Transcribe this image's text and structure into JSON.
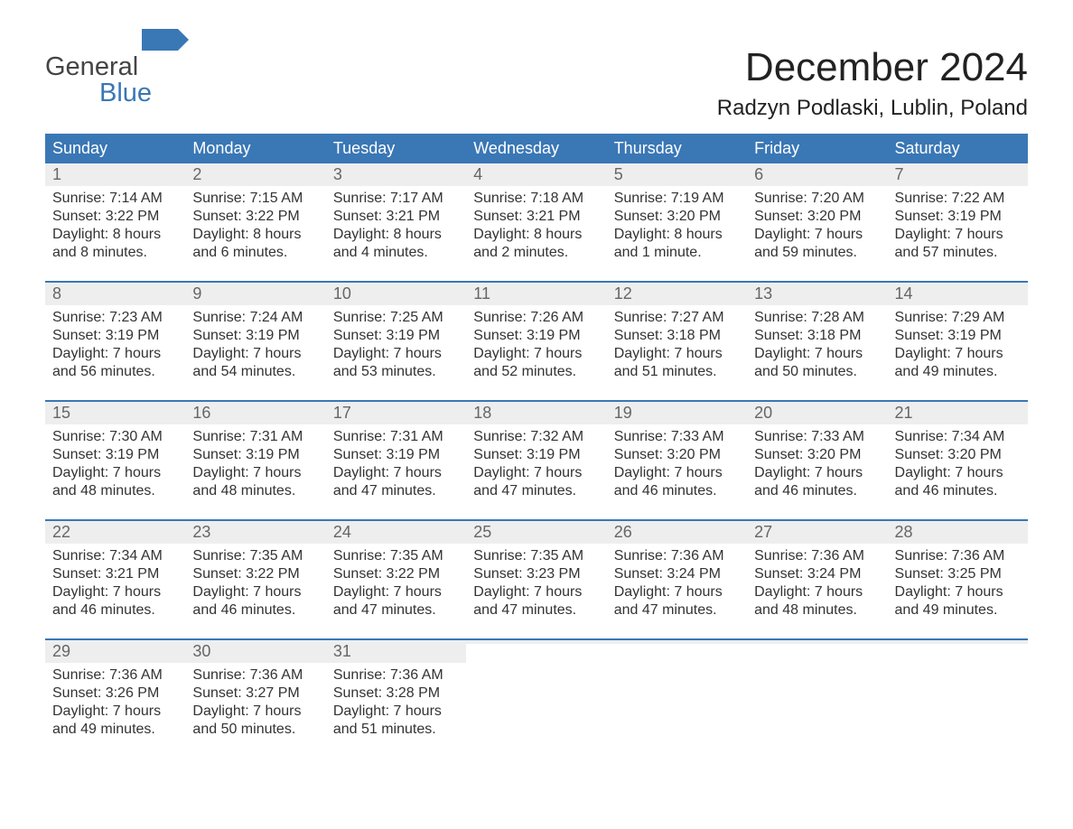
{
  "logo": {
    "text1": "General",
    "text2": "Blue",
    "flag_color": "#3a77b5"
  },
  "header": {
    "title": "December 2024",
    "location": "Radzyn Podlaski, Lublin, Poland"
  },
  "calendar": {
    "type": "table",
    "columns": [
      "Sunday",
      "Monday",
      "Tuesday",
      "Wednesday",
      "Thursday",
      "Friday",
      "Saturday"
    ],
    "header_bg": "#3a77b5",
    "header_fg": "#ffffff",
    "daynum_bg": "#eeeeee",
    "daynum_fg": "#666666",
    "row_separator_color": "#3a77b5",
    "text_color": "#333333",
    "background_color": "#ffffff",
    "fontsize_header": 18,
    "fontsize_daynum": 18,
    "fontsize_body": 16,
    "weeks": [
      [
        {
          "day": "1",
          "sunrise": "Sunrise: 7:14 AM",
          "sunset": "Sunset: 3:22 PM",
          "dl1": "Daylight: 8 hours",
          "dl2": "and 8 minutes."
        },
        {
          "day": "2",
          "sunrise": "Sunrise: 7:15 AM",
          "sunset": "Sunset: 3:22 PM",
          "dl1": "Daylight: 8 hours",
          "dl2": "and 6 minutes."
        },
        {
          "day": "3",
          "sunrise": "Sunrise: 7:17 AM",
          "sunset": "Sunset: 3:21 PM",
          "dl1": "Daylight: 8 hours",
          "dl2": "and 4 minutes."
        },
        {
          "day": "4",
          "sunrise": "Sunrise: 7:18 AM",
          "sunset": "Sunset: 3:21 PM",
          "dl1": "Daylight: 8 hours",
          "dl2": "and 2 minutes."
        },
        {
          "day": "5",
          "sunrise": "Sunrise: 7:19 AM",
          "sunset": "Sunset: 3:20 PM",
          "dl1": "Daylight: 8 hours",
          "dl2": "and 1 minute."
        },
        {
          "day": "6",
          "sunrise": "Sunrise: 7:20 AM",
          "sunset": "Sunset: 3:20 PM",
          "dl1": "Daylight: 7 hours",
          "dl2": "and 59 minutes."
        },
        {
          "day": "7",
          "sunrise": "Sunrise: 7:22 AM",
          "sunset": "Sunset: 3:19 PM",
          "dl1": "Daylight: 7 hours",
          "dl2": "and 57 minutes."
        }
      ],
      [
        {
          "day": "8",
          "sunrise": "Sunrise: 7:23 AM",
          "sunset": "Sunset: 3:19 PM",
          "dl1": "Daylight: 7 hours",
          "dl2": "and 56 minutes."
        },
        {
          "day": "9",
          "sunrise": "Sunrise: 7:24 AM",
          "sunset": "Sunset: 3:19 PM",
          "dl1": "Daylight: 7 hours",
          "dl2": "and 54 minutes."
        },
        {
          "day": "10",
          "sunrise": "Sunrise: 7:25 AM",
          "sunset": "Sunset: 3:19 PM",
          "dl1": "Daylight: 7 hours",
          "dl2": "and 53 minutes."
        },
        {
          "day": "11",
          "sunrise": "Sunrise: 7:26 AM",
          "sunset": "Sunset: 3:19 PM",
          "dl1": "Daylight: 7 hours",
          "dl2": "and 52 minutes."
        },
        {
          "day": "12",
          "sunrise": "Sunrise: 7:27 AM",
          "sunset": "Sunset: 3:18 PM",
          "dl1": "Daylight: 7 hours",
          "dl2": "and 51 minutes."
        },
        {
          "day": "13",
          "sunrise": "Sunrise: 7:28 AM",
          "sunset": "Sunset: 3:18 PM",
          "dl1": "Daylight: 7 hours",
          "dl2": "and 50 minutes."
        },
        {
          "day": "14",
          "sunrise": "Sunrise: 7:29 AM",
          "sunset": "Sunset: 3:19 PM",
          "dl1": "Daylight: 7 hours",
          "dl2": "and 49 minutes."
        }
      ],
      [
        {
          "day": "15",
          "sunrise": "Sunrise: 7:30 AM",
          "sunset": "Sunset: 3:19 PM",
          "dl1": "Daylight: 7 hours",
          "dl2": "and 48 minutes."
        },
        {
          "day": "16",
          "sunrise": "Sunrise: 7:31 AM",
          "sunset": "Sunset: 3:19 PM",
          "dl1": "Daylight: 7 hours",
          "dl2": "and 48 minutes."
        },
        {
          "day": "17",
          "sunrise": "Sunrise: 7:31 AM",
          "sunset": "Sunset: 3:19 PM",
          "dl1": "Daylight: 7 hours",
          "dl2": "and 47 minutes."
        },
        {
          "day": "18",
          "sunrise": "Sunrise: 7:32 AM",
          "sunset": "Sunset: 3:19 PM",
          "dl1": "Daylight: 7 hours",
          "dl2": "and 47 minutes."
        },
        {
          "day": "19",
          "sunrise": "Sunrise: 7:33 AM",
          "sunset": "Sunset: 3:20 PM",
          "dl1": "Daylight: 7 hours",
          "dl2": "and 46 minutes."
        },
        {
          "day": "20",
          "sunrise": "Sunrise: 7:33 AM",
          "sunset": "Sunset: 3:20 PM",
          "dl1": "Daylight: 7 hours",
          "dl2": "and 46 minutes."
        },
        {
          "day": "21",
          "sunrise": "Sunrise: 7:34 AM",
          "sunset": "Sunset: 3:20 PM",
          "dl1": "Daylight: 7 hours",
          "dl2": "and 46 minutes."
        }
      ],
      [
        {
          "day": "22",
          "sunrise": "Sunrise: 7:34 AM",
          "sunset": "Sunset: 3:21 PM",
          "dl1": "Daylight: 7 hours",
          "dl2": "and 46 minutes."
        },
        {
          "day": "23",
          "sunrise": "Sunrise: 7:35 AM",
          "sunset": "Sunset: 3:22 PM",
          "dl1": "Daylight: 7 hours",
          "dl2": "and 46 minutes."
        },
        {
          "day": "24",
          "sunrise": "Sunrise: 7:35 AM",
          "sunset": "Sunset: 3:22 PM",
          "dl1": "Daylight: 7 hours",
          "dl2": "and 47 minutes."
        },
        {
          "day": "25",
          "sunrise": "Sunrise: 7:35 AM",
          "sunset": "Sunset: 3:23 PM",
          "dl1": "Daylight: 7 hours",
          "dl2": "and 47 minutes."
        },
        {
          "day": "26",
          "sunrise": "Sunrise: 7:36 AM",
          "sunset": "Sunset: 3:24 PM",
          "dl1": "Daylight: 7 hours",
          "dl2": "and 47 minutes."
        },
        {
          "day": "27",
          "sunrise": "Sunrise: 7:36 AM",
          "sunset": "Sunset: 3:24 PM",
          "dl1": "Daylight: 7 hours",
          "dl2": "and 48 minutes."
        },
        {
          "day": "28",
          "sunrise": "Sunrise: 7:36 AM",
          "sunset": "Sunset: 3:25 PM",
          "dl1": "Daylight: 7 hours",
          "dl2": "and 49 minutes."
        }
      ],
      [
        {
          "day": "29",
          "sunrise": "Sunrise: 7:36 AM",
          "sunset": "Sunset: 3:26 PM",
          "dl1": "Daylight: 7 hours",
          "dl2": "and 49 minutes."
        },
        {
          "day": "30",
          "sunrise": "Sunrise: 7:36 AM",
          "sunset": "Sunset: 3:27 PM",
          "dl1": "Daylight: 7 hours",
          "dl2": "and 50 minutes."
        },
        {
          "day": "31",
          "sunrise": "Sunrise: 7:36 AM",
          "sunset": "Sunset: 3:28 PM",
          "dl1": "Daylight: 7 hours",
          "dl2": "and 51 minutes."
        },
        {
          "empty": true
        },
        {
          "empty": true
        },
        {
          "empty": true
        },
        {
          "empty": true
        }
      ]
    ]
  }
}
